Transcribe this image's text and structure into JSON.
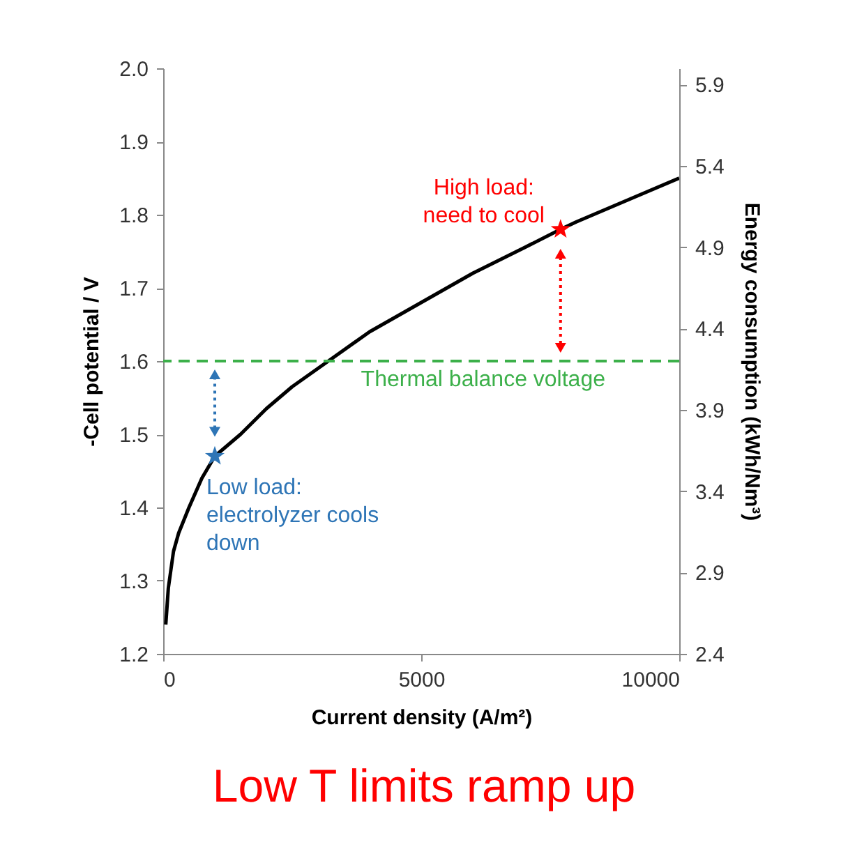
{
  "chart_data": {
    "type": "line",
    "xlabel": "Current density (A/m²)",
    "ylabel": "-Cell potential / V",
    "y2label": "Energy consumption  (kWh/Nm³)",
    "xlim": [
      0,
      10000
    ],
    "xticks": [
      0,
      5000,
      10000
    ],
    "ylim": [
      1.2,
      2.0
    ],
    "yticks": [
      1.2,
      1.3,
      1.4,
      1.5,
      1.6,
      1.7,
      1.8,
      1.9,
      {
        "value": 2,
        "label": "2.0"
      }
    ],
    "y2lim": [
      2.4,
      6.0
    ],
    "y2ticks": [
      2.4,
      2.9,
      3.4,
      3.9,
      4.4,
      4.9,
      5.4,
      5.9
    ],
    "series": [
      {
        "type": "line",
        "color": "#000000",
        "x": [
          50,
          100,
          200,
          300,
          500,
          750,
          1000,
          1500,
          2000,
          2500,
          3000,
          4000,
          5000,
          6000,
          7000,
          7700,
          8000,
          9000,
          10000
        ],
        "values": [
          1.24,
          1.29,
          1.34,
          1.365,
          1.4,
          1.44,
          1.47,
          1.5,
          1.535,
          1.565,
          1.59,
          1.64,
          1.68,
          1.72,
          1.755,
          1.78,
          1.79,
          1.82,
          1.85
        ]
      },
      {
        "type": "scatter",
        "marker": "star",
        "colors": [
          "#2e75b6",
          "#ff0000"
        ],
        "x": [
          1000,
          7700
        ],
        "values": [
          1.47,
          1.78
        ]
      }
    ],
    "ref_lines": [
      {
        "axis": "y",
        "value": 1.6,
        "label": "Thermal balance voltage",
        "color": "#3cb04a",
        "line_style": "dashed"
      }
    ],
    "annotations": [
      {
        "text": "Low load:\nelectrolyzer cools\ndown",
        "x": 1000,
        "y": 1.47
      },
      {
        "text": "High load:\nneed to cool",
        "x": 7700,
        "y": 1.78
      },
      "Low T limits ramp up"
    ],
    "grid": false
  }
}
